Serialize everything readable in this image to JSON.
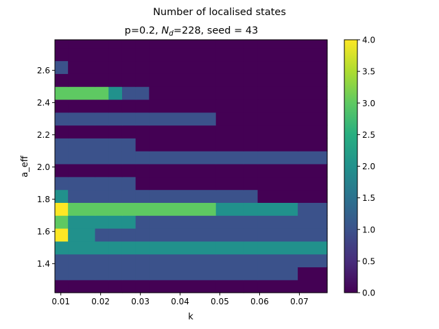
{
  "chart_data": {
    "type": "heatmap",
    "suptitle": "Number of localised states",
    "title_prefix": "p=0.2, ",
    "title_sym": "N",
    "title_sub": "d",
    "title_suffix": "=228, seed = 43",
    "xlabel": "k",
    "ylabel": "a_eff",
    "xlim": [
      0.0085,
      0.077
    ],
    "ylim": [
      1.22,
      2.79
    ],
    "x_ticks": [
      0.01,
      0.02,
      0.03,
      0.04,
      0.05,
      0.06,
      0.07
    ],
    "x_tick_labels": [
      "0.01",
      "0.02",
      "0.03",
      "0.04",
      "0.05",
      "0.06",
      "0.07"
    ],
    "y_ticks": [
      1.4,
      1.6,
      1.8,
      2.0,
      2.2,
      2.4,
      2.6
    ],
    "y_tick_labels": [
      "1.4",
      "1.6",
      "1.8",
      "2.0",
      "2.2",
      "2.4",
      "2.6"
    ],
    "colorbar": {
      "min": 0,
      "max": 4,
      "ticks": [
        0.0,
        0.5,
        1.0,
        1.5,
        2.0,
        2.5,
        3.0,
        3.5,
        4.0
      ],
      "tick_labels": [
        "0.0",
        "0.5",
        "1.0",
        "1.5",
        "2.0",
        "2.5",
        "3.0",
        "3.5",
        "4.0"
      ]
    },
    "colormap": "viridis",
    "x_bin_edges": [
      0.0085,
      0.0118,
      0.0186,
      0.022,
      0.0254,
      0.0288,
      0.0322,
      0.049,
      0.056,
      0.0595,
      0.0696,
      0.077
    ],
    "y_bin_edges": [
      1.22,
      1.3,
      1.38,
      1.46,
      1.54,
      1.62,
      1.7,
      1.78,
      1.86,
      1.94,
      2.02,
      2.1,
      2.18,
      2.26,
      2.34,
      2.42,
      2.5,
      2.58,
      2.66,
      2.74,
      2.79
    ],
    "z": [
      [
        0,
        0,
        0,
        0,
        0,
        0,
        0,
        0,
        0,
        0,
        0
      ],
      [
        1,
        1,
        1,
        1,
        1,
        1,
        1,
        1,
        1,
        1,
        0
      ],
      [
        1,
        1,
        1,
        1,
        1,
        1,
        1,
        1,
        1,
        1,
        1
      ],
      [
        2,
        2,
        2,
        2,
        2,
        2,
        2,
        2,
        2,
        2,
        2
      ],
      [
        4,
        2,
        1,
        1,
        1,
        1,
        1,
        1,
        1,
        1,
        1
      ],
      [
        3,
        2,
        2,
        2,
        2,
        1,
        1,
        1,
        1,
        1,
        1
      ],
      [
        4,
        3,
        3,
        3,
        3,
        3,
        3,
        2,
        2,
        2,
        1
      ],
      [
        2,
        1,
        1,
        1,
        1,
        1,
        1,
        1,
        1,
        0,
        0
      ],
      [
        1,
        1,
        1,
        1,
        1,
        0,
        0,
        0,
        0,
        0,
        0
      ],
      [
        0,
        0,
        0,
        0,
        0,
        0,
        0,
        0,
        0,
        0,
        0
      ],
      [
        1,
        1,
        1,
        1,
        1,
        1,
        1,
        1,
        1,
        1,
        1
      ],
      [
        1,
        1,
        1,
        1,
        1,
        0,
        0,
        0,
        0,
        0,
        0
      ],
      [
        0,
        0,
        0,
        0,
        0,
        0,
        0,
        0,
        0,
        0,
        0
      ],
      [
        1,
        1,
        1,
        1,
        1,
        1,
        1,
        0,
        0,
        0,
        0
      ],
      [
        0,
        0,
        0,
        0,
        0,
        0,
        0,
        0,
        0,
        0,
        0
      ],
      [
        3,
        3,
        3,
        2,
        1,
        1,
        0,
        0,
        0,
        0,
        0
      ],
      [
        0,
        0,
        0,
        0,
        0,
        0,
        0,
        0,
        0,
        0,
        0
      ],
      [
        1,
        0,
        0,
        0,
        0,
        0,
        0,
        0,
        0,
        0,
        0
      ],
      [
        0,
        0,
        0,
        0,
        0,
        0,
        0,
        0,
        0,
        0,
        0
      ],
      [
        0,
        0,
        0,
        0,
        0,
        0,
        0,
        0,
        0,
        0,
        0
      ]
    ]
  }
}
